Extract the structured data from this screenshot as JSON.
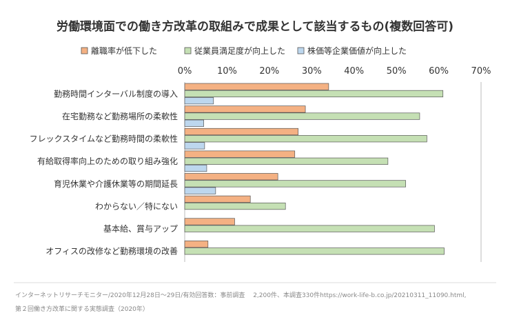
{
  "colors": {
    "background": "#ffffff",
    "text": "#333333",
    "source_text": "#888888",
    "bar_stroke": "#555555",
    "gridline": "#bbbbbb",
    "separator": "#dddddd"
  },
  "chart_data": {
    "type": "bar",
    "orientation": "horizontal",
    "title": "労働環境面での働き方改革の取組みで成果として該当するもの(複数回答可)",
    "xlabel": "",
    "ylabel": "",
    "xlim": [
      0,
      70
    ],
    "x_ticks": [
      "0%",
      "10%",
      "20%",
      "30%",
      "40%",
      "50%",
      "60%",
      "70%"
    ],
    "x_tick_values": [
      0,
      10,
      20,
      30,
      40,
      50,
      60,
      70
    ],
    "legend_position": "top",
    "grid": "vertical at 0 and 70",
    "categories": [
      "勤務時間インターバル制度の導入",
      "在宅勤務など勤務場所の柔軟性",
      "フレックスタイムなど勤務時間の柔軟性",
      "有給取得率向上のための取り組み強化",
      "育児休業や介護休業等の期間延長",
      "わからない／特にない",
      "基本給、賞与アップ",
      "オフィスの改修など勤務環境の改善"
    ],
    "series": [
      {
        "name": "離職率が低下した",
        "color": "#f4b183",
        "values": [
          34,
          28.5,
          26.8,
          26,
          22,
          15.5,
          11.8,
          5.5
        ]
      },
      {
        "name": "従業員満足度が向上した",
        "color": "#c5e0b4",
        "values": [
          61,
          55.5,
          57.2,
          48,
          52.2,
          23.8,
          59,
          61.3
        ]
      },
      {
        "name": "株価等企業価値が向上した",
        "color": "#bdd7ee",
        "values": [
          6.8,
          4.5,
          4.7,
          5.2,
          7.3,
          0,
          0,
          0
        ]
      }
    ]
  },
  "source": {
    "line1": "インターネットリサーチモニター/2020年12月28日〜29日/有効回答数：事前調査　 2,200件、本調査330件https://work-life-b.co.jp/20210311_11090.html,",
    "line2": "第２回働き方改革に関する実態調査（2020年）"
  }
}
